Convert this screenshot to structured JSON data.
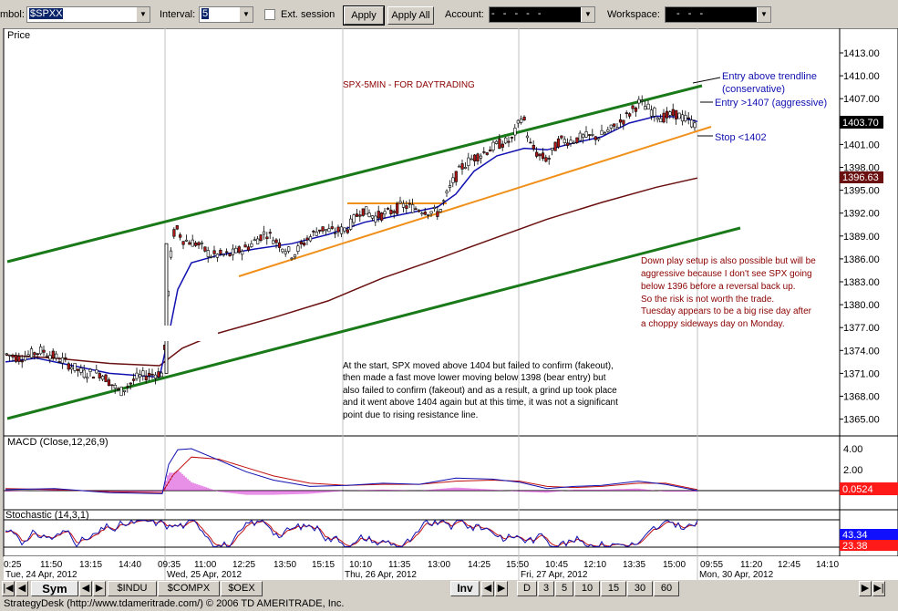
{
  "toolbar": {
    "symbol_label": "mbol:",
    "symbol_value": "$SPXX",
    "interval_label": "Interval:",
    "interval_value": "5",
    "ext_session_label": "Ext. session",
    "apply_label": "Apply",
    "apply_all_label": "Apply All",
    "account_label": "Account:",
    "account_value": "- - - - -",
    "workspace_label": "Workspace:",
    "workspace_value": "- - -"
  },
  "chart": {
    "price_label": "Price",
    "title": "SPX-5MIN - FOR DAYTRADING",
    "price_ticks": [
      "1413.00",
      "1410.00",
      "1407.00",
      "1404.00",
      "1401.00",
      "1398.00",
      "1395.00",
      "1392.00",
      "1389.00",
      "1386.00",
      "1383.00",
      "1380.00",
      "1377.00",
      "1374.00",
      "1371.00",
      "1368.00",
      "1365.00"
    ],
    "last_price_badge": "1403.70",
    "ma_price_badge": "1396.63",
    "annotations": {
      "entry_trendline": [
        "Entry above trendline",
        "(conservative)"
      ],
      "entry_aggressive": "Entry >1407 (aggressive)",
      "stop": "Stop <1402",
      "down_play": [
        "Down play setup is also possible but will be",
        "aggressive  because I don't see SPX going",
        "below 1396 before a reversal back up.",
        "So the risk is not worth the trade.",
        "Tuesday appears to be a big rise day after",
        "a choppy sideways day on Monday."
      ],
      "start_note": [
        "At the start, SPX moved above 1404 but failed to confirm (fakeout),",
        "then made a fast move lower moving below 1398 (bear entry) but",
        "also failed to confirm (fakeout) and as a result, a grind up took place",
        "and it went above 1404 again but at this time, it was not a significant",
        "point due to rising resistance line."
      ]
    },
    "macd_label": "MACD (Close,12,26,9)",
    "macd_ticks": [
      "4.00",
      "2.00"
    ],
    "macd_badge": "0.0524",
    "stoch_label": "Stochastic (14,3,1)",
    "stoch_badge_blue": "43.34",
    "stoch_badge_red": "23.38",
    "time_ticks": [
      "0:25",
      "11:50",
      "13:15",
      "14:40",
      "09:35",
      "11:00",
      "12:25",
      "13:50",
      "15:15",
      "10:10",
      "11:35",
      "13:00",
      "14:25",
      "15:50",
      "10:45",
      "12:10",
      "13:35",
      "15:00",
      "09:55",
      "11:20",
      "12:45",
      "14:10"
    ],
    "date_labels": [
      "Tue, 24 Apr, 2012",
      "Wed, 25 Apr, 2012",
      "Thu, 26 Apr, 2012",
      "Fri, 27 Apr, 2012",
      "Mon, 30 Apr, 2012"
    ]
  },
  "tabs": {
    "sym": "Sym",
    "symbols": [
      "$INDU",
      "$COMPX",
      "$OEX"
    ],
    "intraday": "Inv",
    "periods": [
      "D",
      "3",
      "5",
      "10",
      "15",
      "30",
      "60"
    ]
  },
  "status": "StrategyDesk (http://www.tdameritrade.com/) © 2006 TD AMERITRADE, Inc.",
  "colors": {
    "green_channel": "#1a7a1a",
    "orange_trend": "#f0901a",
    "ma_blue": "#1010b0",
    "ma_maroon": "#6a1010",
    "badge_red": "#ff1a1a"
  }
}
